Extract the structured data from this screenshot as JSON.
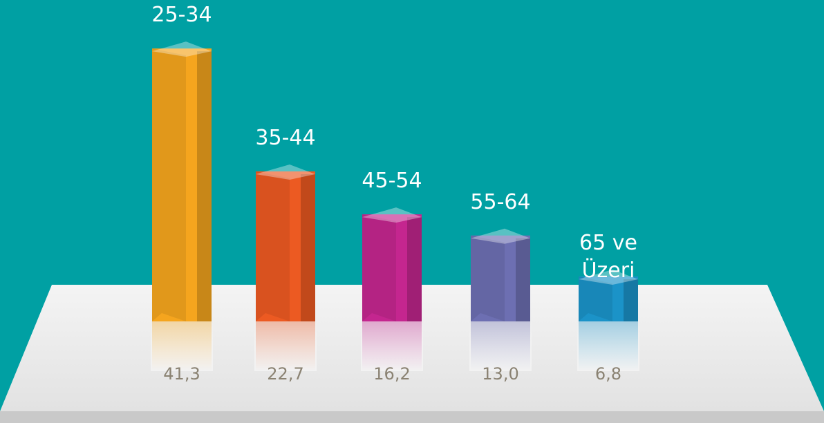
{
  "chart_data": {
    "type": "bar",
    "categories": [
      "25-34",
      "35-44",
      "45-54",
      "55-64",
      "65 ve Üzeri"
    ],
    "values": [
      41.3,
      22.7,
      16.2,
      13.0,
      6.8
    ],
    "value_labels": [
      "41,3",
      "22,7",
      "16,2",
      "13,0",
      "6,8"
    ],
    "colors": [
      "#f5a51e",
      "#ec5a22",
      "#c4268f",
      "#6d6fb2",
      "#1b93c8"
    ]
  }
}
